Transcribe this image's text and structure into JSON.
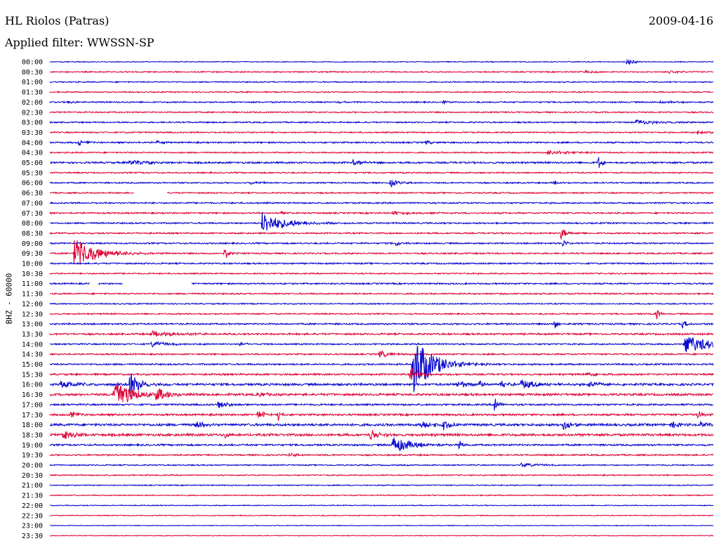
{
  "header": {
    "station": "HL Riolos (Patras)",
    "date": "2009-04-16",
    "filter": "Applied filter: WWSSN-SP"
  },
  "chart_data": {
    "type": "line",
    "title": "HL Riolos (Patras)",
    "subtitle": "Applied filter: WWSSN-SP",
    "ylabel": "BHZ - 60000",
    "xlabel": "",
    "traces": [
      "00:00",
      "00:30",
      "01:00",
      "01:30",
      "02:00",
      "02:30",
      "03:00",
      "03:30",
      "04:00",
      "04:30",
      "05:00",
      "05:30",
      "06:00",
      "06:30",
      "07:00",
      "07:30",
      "08:00",
      "08:30",
      "09:00",
      "09:30",
      "10:00",
      "10:30",
      "11:00",
      "11:30",
      "12:00",
      "12:30",
      "13:00",
      "13:30",
      "14:00",
      "14:30",
      "15:00",
      "15:30",
      "16:00",
      "16:30",
      "17:00",
      "17:30",
      "18:00",
      "18:30",
      "19:00",
      "19:30",
      "20:00",
      "20:30",
      "21:00",
      "21:30",
      "22:00",
      "22:30",
      "23:00",
      "23:30"
    ],
    "colors": [
      "#0000cc",
      "#dd0033"
    ],
    "noise_level": [
      0.6,
      0.8,
      0.8,
      0.8,
      0.9,
      0.9,
      0.9,
      0.9,
      1.0,
      0.9,
      1.2,
      0.9,
      0.9,
      0.9,
      1.0,
      1.0,
      1.0,
      1.0,
      1.0,
      1.0,
      1.0,
      0.9,
      1.0,
      1.0,
      0.8,
      0.9,
      1.1,
      1.2,
      1.0,
      1.0,
      1.1,
      1.2,
      1.5,
      1.5,
      1.2,
      1.3,
      1.6,
      1.6,
      1.2,
      1.0,
      0.8,
      0.8,
      0.7,
      0.7,
      0.6,
      0.6,
      0.5,
      0.5
    ],
    "events": [
      {
        "trace": 0,
        "time_min": 26.1,
        "amp": 7,
        "dur_min": 0.4
      },
      {
        "trace": 1,
        "time_min": 24.0,
        "amp": 2,
        "dur_min": 1.5
      },
      {
        "trace": 1,
        "time_min": 28.0,
        "amp": 2,
        "dur_min": 1.0
      },
      {
        "trace": 4,
        "time_min": 0.8,
        "amp": 2,
        "dur_min": 0.5
      },
      {
        "trace": 4,
        "time_min": 13.0,
        "amp": 2,
        "dur_min": 0.5
      },
      {
        "trace": 4,
        "time_min": 17.8,
        "amp": 3,
        "dur_min": 0.5
      },
      {
        "trace": 4,
        "time_min": 27.5,
        "amp": 2,
        "dur_min": 1.5
      },
      {
        "trace": 6,
        "time_min": 26.5,
        "amp": 4,
        "dur_min": 1.5
      },
      {
        "trace": 7,
        "time_min": 29.3,
        "amp": 3,
        "dur_min": 1.0
      },
      {
        "trace": 8,
        "time_min": 1.3,
        "amp": 5,
        "dur_min": 0.6
      },
      {
        "trace": 8,
        "time_min": 4.8,
        "amp": 3,
        "dur_min": 0.4
      },
      {
        "trace": 8,
        "time_min": 17.0,
        "amp": 3,
        "dur_min": 0.5
      },
      {
        "trace": 9,
        "time_min": 22.5,
        "amp": 3,
        "dur_min": 2.0
      },
      {
        "trace": 10,
        "time_min": 3.6,
        "amp": 4,
        "dur_min": 1.5
      },
      {
        "trace": 10,
        "time_min": 13.7,
        "amp": 4,
        "dur_min": 0.8
      },
      {
        "trace": 10,
        "time_min": 24.8,
        "amp": 9,
        "dur_min": 0.3
      },
      {
        "trace": 12,
        "time_min": 9.1,
        "amp": 3,
        "dur_min": 0.8
      },
      {
        "trace": 12,
        "time_min": 15.4,
        "amp": 6,
        "dur_min": 0.6
      },
      {
        "trace": 12,
        "time_min": 22.8,
        "amp": 3,
        "dur_min": 0.4
      },
      {
        "trace": 15,
        "time_min": 10.4,
        "amp": 3,
        "dur_min": 0.5
      },
      {
        "trace": 15,
        "time_min": 15.5,
        "amp": 3,
        "dur_min": 1.2
      },
      {
        "trace": 16,
        "time_min": 9.6,
        "amp": 16,
        "dur_min": 1.8
      },
      {
        "trace": 17,
        "time_min": 23.1,
        "amp": 10,
        "dur_min": 0.4
      },
      {
        "trace": 18,
        "time_min": 15.6,
        "amp": 5,
        "dur_min": 0.4
      },
      {
        "trace": 18,
        "time_min": 23.2,
        "amp": 6,
        "dur_min": 0.3
      },
      {
        "trace": 19,
        "time_min": 1.1,
        "amp": 22,
        "dur_min": 1.8
      },
      {
        "trace": 19,
        "time_min": 7.9,
        "amp": 9,
        "dur_min": 0.4
      },
      {
        "trace": 25,
        "time_min": 27.4,
        "amp": 9,
        "dur_min": 0.3
      },
      {
        "trace": 26,
        "time_min": 22.8,
        "amp": 8,
        "dur_min": 0.3
      },
      {
        "trace": 26,
        "time_min": 28.6,
        "amp": 6,
        "dur_min": 0.4
      },
      {
        "trace": 27,
        "time_min": 4.6,
        "amp": 4,
        "dur_min": 2.0
      },
      {
        "trace": 28,
        "time_min": 4.6,
        "amp": 4,
        "dur_min": 1.5
      },
      {
        "trace": 28,
        "time_min": 8.6,
        "amp": 3,
        "dur_min": 0.6
      },
      {
        "trace": 28,
        "time_min": 28.7,
        "amp": 12,
        "dur_min": 3.0
      },
      {
        "trace": 29,
        "time_min": 14.9,
        "amp": 5,
        "dur_min": 1.0
      },
      {
        "trace": 30,
        "time_min": 16.4,
        "amp": 45,
        "dur_min": 1.5
      },
      {
        "trace": 31,
        "time_min": 16.3,
        "amp": 10,
        "dur_min": 0.8
      },
      {
        "trace": 31,
        "time_min": 24.3,
        "amp": 3,
        "dur_min": 1.5
      },
      {
        "trace": 32,
        "time_min": 0.5,
        "amp": 6,
        "dur_min": 1.2
      },
      {
        "trace": 32,
        "time_min": 3.6,
        "amp": 20,
        "dur_min": 0.8
      },
      {
        "trace": 32,
        "time_min": 18.4,
        "amp": 6,
        "dur_min": 0.8
      },
      {
        "trace": 32,
        "time_min": 19.4,
        "amp": 5,
        "dur_min": 0.5
      },
      {
        "trace": 32,
        "time_min": 20.4,
        "amp": 7,
        "dur_min": 0.5
      },
      {
        "trace": 32,
        "time_min": 21.3,
        "amp": 6,
        "dur_min": 1.6
      },
      {
        "trace": 32,
        "time_min": 24.3,
        "amp": 4,
        "dur_min": 1.5
      },
      {
        "trace": 33,
        "time_min": 2.9,
        "amp": 28,
        "dur_min": 1.2
      },
      {
        "trace": 33,
        "time_min": 4.8,
        "amp": 10,
        "dur_min": 1.0
      },
      {
        "trace": 33,
        "time_min": 9.4,
        "amp": 4,
        "dur_min": 0.8
      },
      {
        "trace": 34,
        "time_min": 7.6,
        "amp": 6,
        "dur_min": 0.8
      },
      {
        "trace": 34,
        "time_min": 20.1,
        "amp": 18,
        "dur_min": 0.2
      },
      {
        "trace": 35,
        "time_min": 0.9,
        "amp": 6,
        "dur_min": 0.5
      },
      {
        "trace": 35,
        "time_min": 9.4,
        "amp": 7,
        "dur_min": 0.6
      },
      {
        "trace": 35,
        "time_min": 10.3,
        "amp": 12,
        "dur_min": 0.2
      },
      {
        "trace": 35,
        "time_min": 29.3,
        "amp": 6,
        "dur_min": 0.4
      },
      {
        "trace": 36,
        "time_min": 6.6,
        "amp": 7,
        "dur_min": 0.6
      },
      {
        "trace": 36,
        "time_min": 16.8,
        "amp": 6,
        "dur_min": 1.0
      },
      {
        "trace": 36,
        "time_min": 17.8,
        "amp": 8,
        "dur_min": 0.5
      },
      {
        "trace": 36,
        "time_min": 23.2,
        "amp": 9,
        "dur_min": 0.6
      },
      {
        "trace": 36,
        "time_min": 28.1,
        "amp": 6,
        "dur_min": 0.5
      },
      {
        "trace": 36,
        "time_min": 29.4,
        "amp": 5,
        "dur_min": 0.8
      },
      {
        "trace": 37,
        "time_min": 0.6,
        "amp": 6,
        "dur_min": 1.2
      },
      {
        "trace": 37,
        "time_min": 7.9,
        "amp": 8,
        "dur_min": 0.3
      },
      {
        "trace": 37,
        "time_min": 14.5,
        "amp": 10,
        "dur_min": 0.5
      },
      {
        "trace": 38,
        "time_min": 15.5,
        "amp": 13,
        "dur_min": 1.5
      },
      {
        "trace": 38,
        "time_min": 18.5,
        "amp": 10,
        "dur_min": 0.2
      },
      {
        "trace": 39,
        "time_min": 10.8,
        "amp": 3,
        "dur_min": 0.5
      },
      {
        "trace": 40,
        "time_min": 21.3,
        "amp": 3,
        "dur_min": 1.5
      }
    ],
    "gaps": [
      {
        "trace": 13,
        "from_min": 3.8,
        "to_min": 5.3
      },
      {
        "trace": 22,
        "from_min": 1.8,
        "to_min": 2.2
      },
      {
        "trace": 22,
        "from_min": 3.3,
        "to_min": 6.4
      }
    ]
  }
}
